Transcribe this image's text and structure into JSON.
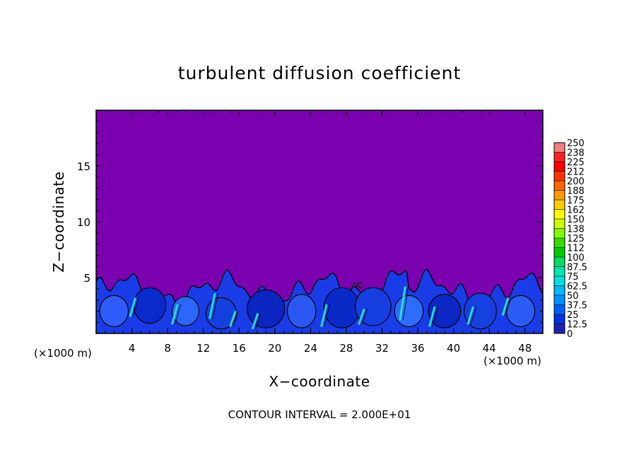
{
  "chart_data": {
    "type": "heatmap",
    "title": "turbulent diffusion coefficient",
    "xlabel": "X−coordinate",
    "ylabel": "Z−coordinate",
    "x_unit": "(×1000 m)",
    "x_unit_right": "(×1000 m)",
    "footer": "CONTOUR INTERVAL = 2.000E+01",
    "xlim": [
      0,
      50
    ],
    "ylim": [
      0,
      20
    ],
    "x_ticks": [
      "4",
      "8",
      "12",
      "16",
      "20",
      "24",
      "28",
      "32",
      "36",
      "40",
      "44",
      "48"
    ],
    "y_ticks": [
      "5",
      "10",
      "15"
    ],
    "contour_label": "40",
    "background_value": 0,
    "turbulent_layer_top_approx": 5,
    "colorbar": {
      "labels": [
        "250",
        "238",
        "225",
        "212",
        "200",
        "188",
        "175",
        "162",
        "150",
        "138",
        "125",
        "112",
        "100",
        "87.5",
        "75",
        "62.5",
        "50",
        "37.5",
        "25",
        "12.5",
        "0"
      ],
      "colors": [
        "#f08080",
        "#ff2020",
        "#ff0000",
        "#ff3300",
        "#ff6600",
        "#ff9900",
        "#ffcc00",
        "#ffff00",
        "#ccff00",
        "#80ff00",
        "#33dd00",
        "#00cc00",
        "#00dd66",
        "#00e6b0",
        "#00e0e0",
        "#00b8ff",
        "#0090ff",
        "#0060ff",
        "#0030e0",
        "#2020b0",
        "#7a00b0"
      ]
    }
  }
}
